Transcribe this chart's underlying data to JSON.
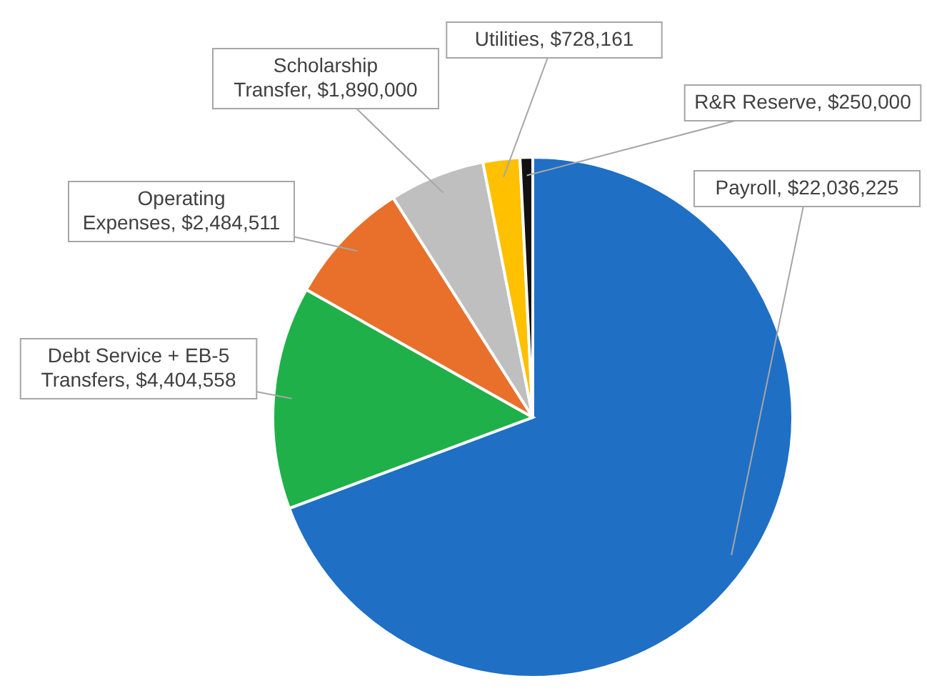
{
  "chart_data": {
    "type": "pie",
    "categories": [
      "Payroll",
      "Debt Service + EB-5 Transfers",
      "Operating Expenses",
      "Scholarship Transfer",
      "Utilities",
      "R&R Reserve"
    ],
    "values": [
      22036225,
      4404558,
      2484511,
      1890000,
      728161,
      250000
    ],
    "colors": [
      "#1f6fc5",
      "#1fb04a",
      "#e8702a",
      "#bfbfbf",
      "#ffc000",
      "#111111"
    ],
    "value_labels": [
      "$22,036,225",
      "$4,404,558",
      "$2,484,511",
      "$1,890,000",
      "$728,161",
      "$250,000"
    ],
    "data_labels": true
  }
}
